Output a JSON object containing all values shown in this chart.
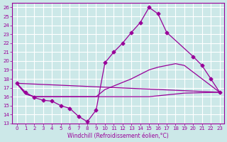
{
  "xlabel": "Windchill (Refroidissement éolien,°C)",
  "xlim": [
    -0.5,
    23.5
  ],
  "ylim": [
    13,
    26.5
  ],
  "yticks": [
    13,
    14,
    15,
    16,
    17,
    18,
    19,
    20,
    21,
    22,
    23,
    24,
    25,
    26
  ],
  "xticks": [
    0,
    1,
    2,
    3,
    4,
    5,
    6,
    7,
    8,
    9,
    10,
    11,
    12,
    13,
    14,
    15,
    16,
    17,
    18,
    19,
    20,
    21,
    22,
    23
  ],
  "bg_color": "#cce8e8",
  "grid_color": "#ffffff",
  "line_color": "#990099",
  "lines": [
    {
      "x": [
        0,
        1,
        2,
        3,
        4,
        5,
        6,
        7,
        8,
        9,
        10,
        11,
        12,
        13,
        14,
        15,
        16,
        17,
        20,
        21,
        22,
        23
      ],
      "y": [
        17.5,
        16.5,
        15.9,
        15.6,
        15.5,
        15.0,
        14.7,
        13.8,
        13.2,
        14.5,
        19.8,
        21.0,
        22.0,
        23.2,
        24.3,
        26.0,
        25.3,
        23.2,
        20.5,
        19.5,
        18.0,
        16.5
      ],
      "has_markers": true
    },
    {
      "x": [
        0,
        23
      ],
      "y": [
        17.5,
        16.5
      ],
      "has_markers": false
    },
    {
      "x": [
        0,
        1,
        2,
        3,
        4,
        5,
        6,
        7,
        8,
        9,
        10,
        11,
        12,
        13,
        14,
        15,
        16,
        17,
        18,
        19,
        23
      ],
      "y": [
        17.5,
        16.3,
        16.0,
        16.0,
        16.0,
        16.0,
        16.0,
        16.0,
        16.0,
        16.0,
        16.0,
        16.0,
        16.0,
        16.0,
        16.0,
        16.0,
        16.1,
        16.2,
        16.3,
        16.4,
        16.5
      ],
      "has_markers": false
    },
    {
      "x": [
        0,
        1,
        2,
        3,
        4,
        5,
        6,
        7,
        8,
        9,
        10,
        11,
        12,
        13,
        14,
        15,
        16,
        17,
        18,
        19,
        23
      ],
      "y": [
        17.5,
        16.3,
        16.0,
        16.0,
        16.0,
        16.0,
        16.0,
        16.0,
        16.0,
        16.0,
        16.8,
        17.2,
        17.6,
        18.0,
        18.5,
        19.0,
        19.3,
        19.5,
        19.7,
        19.5,
        16.5
      ],
      "has_markers": false
    }
  ]
}
